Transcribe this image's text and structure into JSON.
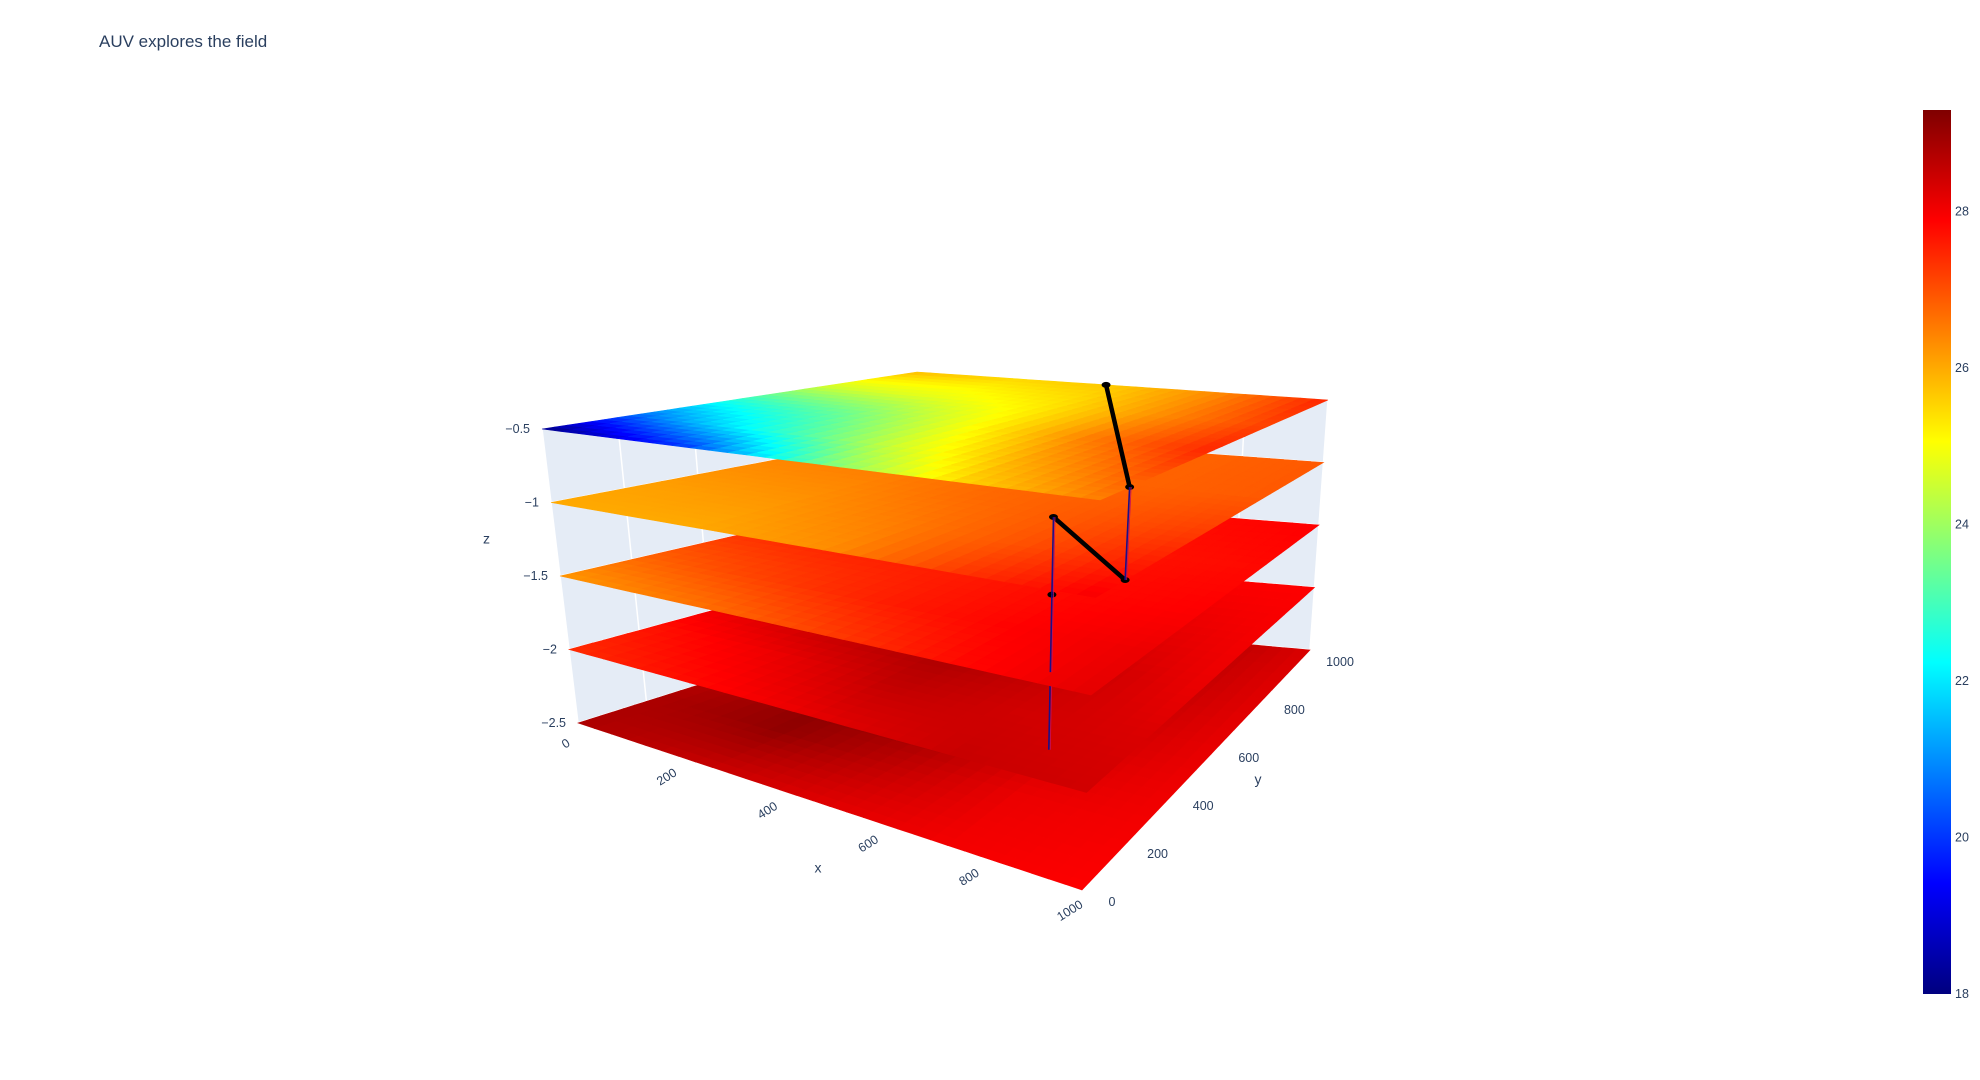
{
  "chart_data": {
    "type": "surface",
    "title": "AUV explores the field",
    "x_axis": {
      "label": "x",
      "range": [
        0,
        1000
      ],
      "ticks": [
        0,
        200,
        400,
        600,
        800,
        1000
      ]
    },
    "y_axis": {
      "label": "y",
      "range": [
        0,
        1000
      ],
      "ticks": [
        0,
        200,
        400,
        600,
        800,
        1000
      ]
    },
    "z_axis": {
      "label": "z",
      "range": [
        -2.5,
        -0.5
      ],
      "ticks": [
        -0.5,
        -1,
        -1.5,
        -2,
        -2.5
      ],
      "tick_labels": [
        "−0.5",
        "−1",
        "−1.5",
        "−2",
        "−2.5"
      ]
    },
    "colorbar": {
      "colorscale": "jet",
      "range": [
        18,
        29.3
      ],
      "ticks": [
        18,
        20,
        22,
        24,
        26,
        28
      ],
      "colors": [
        "#00007f",
        "#0000ff",
        "#007fff",
        "#00ffff",
        "#7fff7f",
        "#ffff00",
        "#ff7f00",
        "#ff0000",
        "#7f0000"
      ]
    },
    "surfaces": [
      {
        "z": -0.5,
        "grid": [
          [
            18,
            20,
            23.5,
            25.5,
            26.5
          ],
          [
            20.5,
            22.5,
            24.5,
            26,
            27
          ],
          [
            22.5,
            23.5,
            25,
            26.5,
            27.5
          ],
          [
            24.5,
            24.8,
            25.3,
            26.3,
            27.2
          ],
          [
            25.8,
            25.5,
            25.7,
            26.4,
            27.5
          ]
        ]
      },
      {
        "z": -1,
        "grid": [
          [
            26,
            26,
            26.3,
            27.3,
            28
          ],
          [
            26.1,
            26.2,
            26.5,
            27,
            27.6
          ],
          [
            26.3,
            26.4,
            26.7,
            26.9,
            27.2
          ],
          [
            26.5,
            26.6,
            26.8,
            26.8,
            26.9
          ],
          [
            26.7,
            26.7,
            26.8,
            26.8,
            26.9
          ]
        ]
      },
      {
        "z": -1.5,
        "grid": [
          [
            26.2,
            26.6,
            27.2,
            27.8,
            28.2
          ],
          [
            26.8,
            27.2,
            27.6,
            27.9,
            28.1
          ],
          [
            27.3,
            27.5,
            27.6,
            27.8,
            27.9
          ],
          [
            27.5,
            27.4,
            27.6,
            27.7,
            27.8
          ],
          [
            27.8,
            27.6,
            27.7,
            27.8,
            27.9
          ]
        ]
      },
      {
        "z": -2,
        "grid": [
          [
            27.4,
            27.8,
            28.2,
            28.5,
            28.4
          ],
          [
            27.7,
            28.1,
            28.6,
            28.4,
            28.3
          ],
          [
            28.2,
            28.7,
            28.9,
            28.5,
            28.1
          ],
          [
            28.4,
            28.6,
            28.5,
            28.2,
            28.0
          ],
          [
            28.3,
            28.2,
            28.1,
            27.9,
            27.9
          ]
        ]
      },
      {
        "z": -2.5,
        "grid": [
          [
            28.8,
            28.5,
            28.2,
            28.0,
            27.9
          ],
          [
            28.8,
            29.1,
            28.6,
            28.1,
            28.0
          ],
          [
            28.6,
            29.2,
            29.0,
            28.4,
            28.1
          ],
          [
            28.4,
            28.8,
            29.1,
            28.6,
            28.2
          ],
          [
            28.3,
            28.6,
            28.9,
            28.7,
            28.3
          ]
        ]
      }
    ],
    "auv_path": [
      {
        "x": 460,
        "y": 1000,
        "z": -0.5
      },
      {
        "x": 1000,
        "y": 130,
        "z": -0.5
      },
      {
        "x": 1000,
        "y": 130,
        "z": -1
      },
      {
        "x": 700,
        "y": 450,
        "z": -1
      },
      {
        "x": 700,
        "y": 450,
        "z": -1.5
      },
      {
        "x": 700,
        "y": 450,
        "z": -2
      },
      {
        "x": 700,
        "y": 450,
        "z": -2.5
      },
      {
        "x": 320,
        "y": 1000,
        "z": -2.5
      }
    ]
  }
}
